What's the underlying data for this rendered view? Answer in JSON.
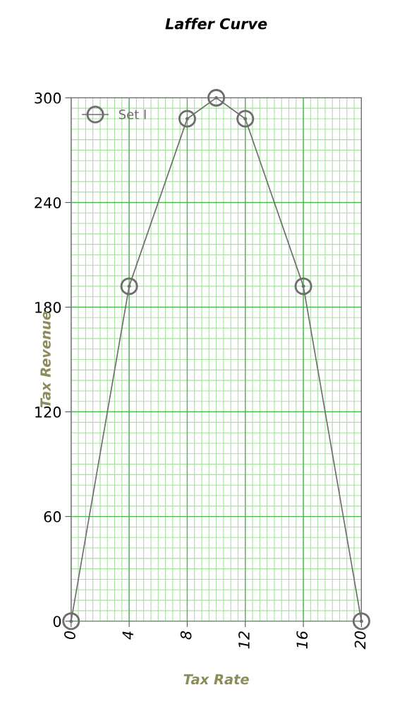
{
  "chart_data": {
    "type": "line",
    "title": "Laffer Curve",
    "xlabel": "Tax Rate",
    "ylabel": "Tax Revenue",
    "x": [
      0,
      4,
      8,
      10,
      12,
      16,
      20
    ],
    "series": [
      {
        "name": "Set I",
        "color": "#6e6e6e",
        "values": [
          0,
          192,
          288,
          300,
          288,
          192,
          0
        ]
      }
    ],
    "xlim": [
      0,
      20
    ],
    "xticks": [
      0,
      4,
      8,
      12,
      16,
      20
    ],
    "ylim": [
      0,
      300
    ],
    "yticks": [
      0,
      60,
      120,
      180,
      240,
      300
    ],
    "grid": true,
    "legend": "top left",
    "marker": "circle",
    "line_style": "solid"
  }
}
